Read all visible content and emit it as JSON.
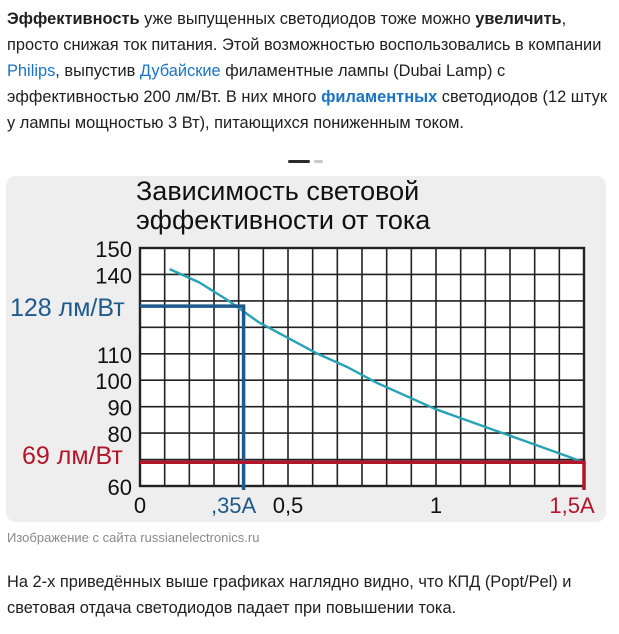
{
  "intro": {
    "t1": "Эффективность",
    "t2": " уже выпущенных светодиодов тоже можно ",
    "t3": "увеличить",
    "t4": ", просто снижая ток питания. Этой возможностью воспользовались в компании ",
    "link_philips": "Philips",
    "t5": ", выпустив ",
    "link_dubai": "Дубайские",
    "t6": " филаментные лампы (Dubai Lamp) с эффективностью 200 лм/Вт. В них много ",
    "link_filament": "филаментных",
    "t7": " светодиодов (12 штук у лампы мощностью 3 Вт), питающихся пониженным током."
  },
  "caption": "Изображение с сайта russianelectronics.ru",
  "outro": "На 2-х приведённых выше графиках наглядно видно, что КПД (Popt/Pel) и световая отдача светодиодов падает при повышении тока.",
  "chart_data": {
    "type": "line",
    "title_line1": "Зависимость световой",
    "title_line2": "эффективности от тока",
    "xlabel": "",
    "ylabel": "",
    "xlim": [
      0,
      1.5
    ],
    "ylim": [
      60,
      150
    ],
    "y_ticks": [
      "150",
      "140",
      "110",
      "100",
      "90",
      "80",
      "60"
    ],
    "y_tick_values": [
      150,
      140,
      110,
      100,
      90,
      80,
      60
    ],
    "x_ticks": [
      "0",
      "0,5",
      "1"
    ],
    "x_tick_values": [
      0,
      0.5,
      1
    ],
    "grid": true,
    "series": [
      {
        "color": "#26a3b5",
        "x": [
          0.1,
          0.2,
          0.3,
          0.4,
          0.5,
          0.6,
          0.7,
          0.8,
          0.9,
          1.0,
          1.1,
          1.2,
          1.3,
          1.4,
          1.5
        ],
        "y": [
          142,
          137,
          130,
          122,
          116,
          110,
          105,
          99,
          94,
          89,
          85,
          81,
          77,
          73,
          69
        ]
      }
    ],
    "annotations": [
      {
        "label": "128 лм/Вт",
        "x_label": ",35A",
        "x": 0.35,
        "y": 128,
        "color": "#1e5a8c"
      },
      {
        "label": "69 лм/Вт",
        "x_label": "1,5A",
        "x": 1.5,
        "y": 69,
        "color": "#b3152a"
      }
    ]
  },
  "colors": {
    "link": "#1a73c8",
    "figure_bg": "#eeeeee",
    "plot_bg": "#ffffff",
    "grid": "#222222",
    "curve": "#26a3b5",
    "marker_blue": "#1e5a8c",
    "marker_red": "#b3152a"
  }
}
